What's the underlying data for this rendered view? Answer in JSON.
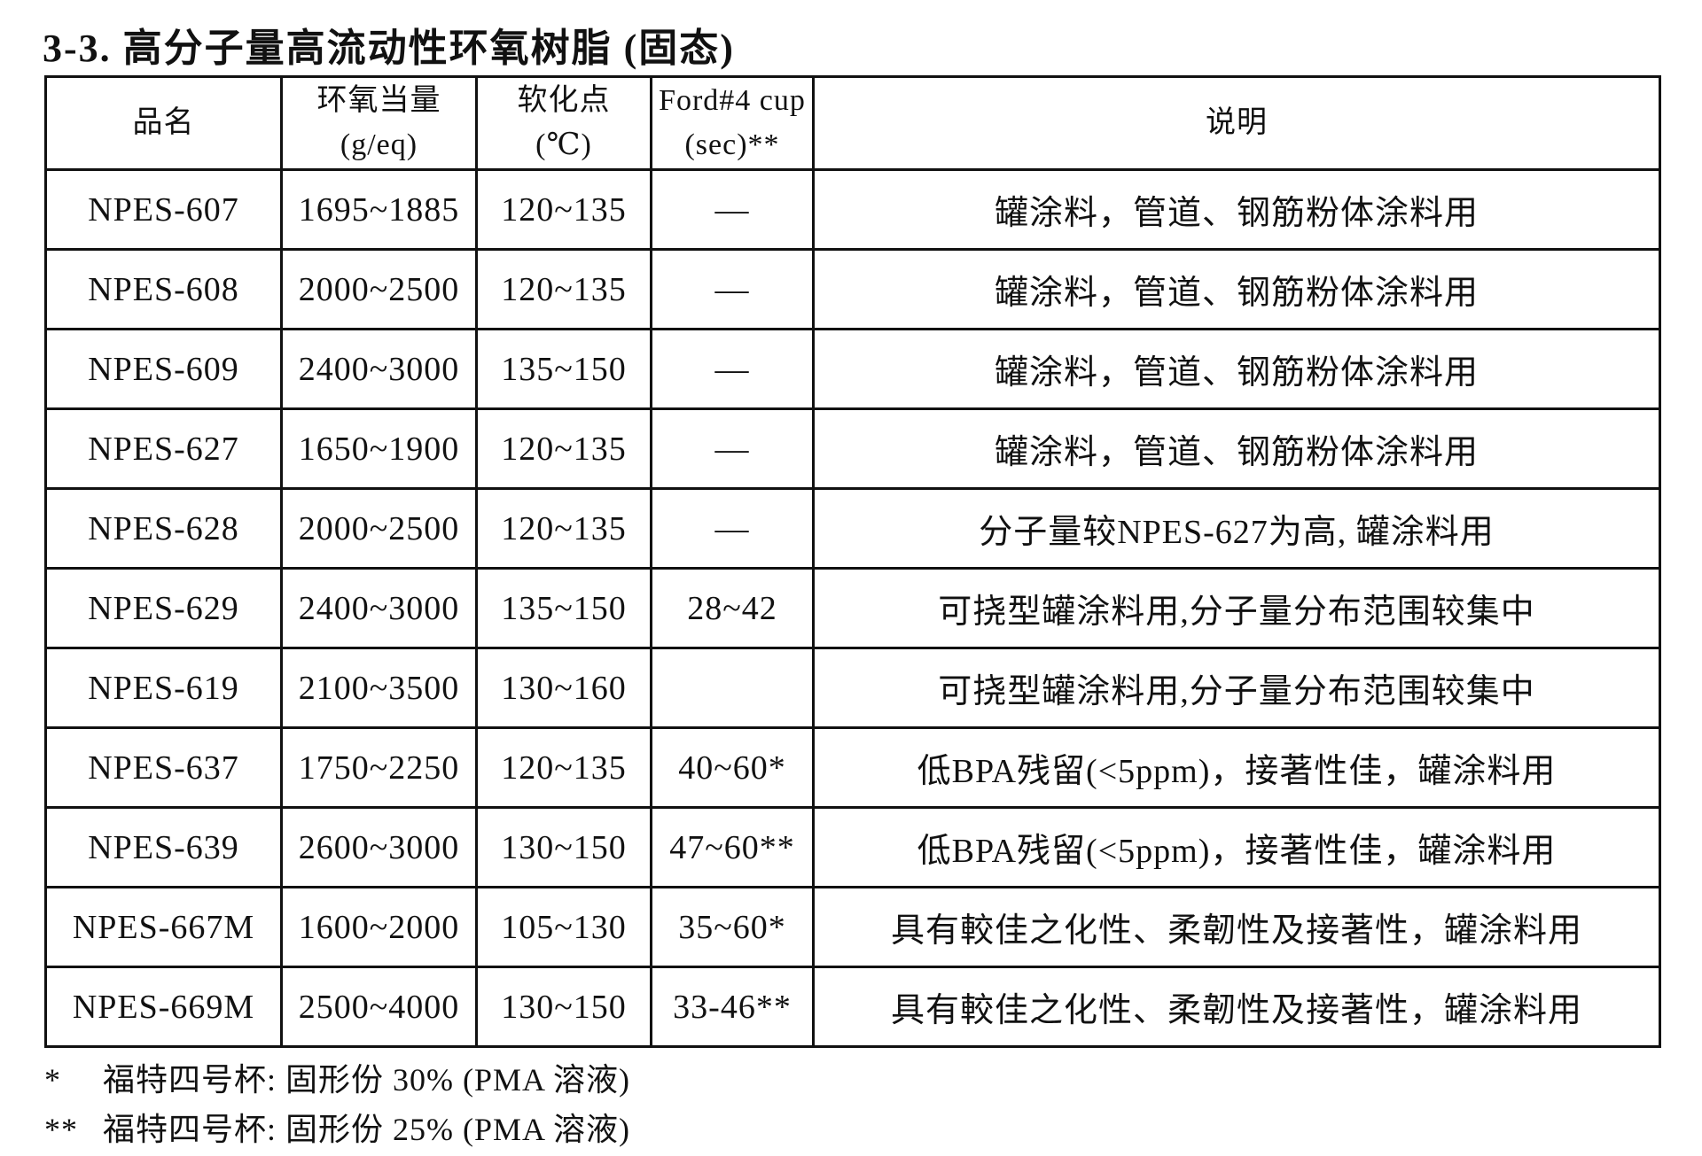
{
  "title": "3-3. 高分子量高流动性环氧树脂 (固态)",
  "table": {
    "headers": [
      [
        "品名"
      ],
      [
        "环氧当量",
        "(g/eq)"
      ],
      [
        "软化点",
        "(℃)"
      ],
      [
        "Ford#4 cup",
        "(sec)**"
      ],
      [
        "说明"
      ]
    ],
    "rows": [
      [
        "NPES-607",
        "1695~1885",
        "120~135",
        "—",
        "罐涂料，管道、钢筋粉体涂料用"
      ],
      [
        "NPES-608",
        "2000~2500",
        "120~135",
        "—",
        "罐涂料，管道、钢筋粉体涂料用"
      ],
      [
        "NPES-609",
        "2400~3000",
        "135~150",
        "—",
        "罐涂料，管道、钢筋粉体涂料用"
      ],
      [
        "NPES-627",
        "1650~1900",
        "120~135",
        "—",
        "罐涂料，管道、钢筋粉体涂料用"
      ],
      [
        "NPES-628",
        "2000~2500",
        "120~135",
        "—",
        "分子量较NPES-627为高, 罐涂料用"
      ],
      [
        "NPES-629",
        "2400~3000",
        "135~150",
        "28~42",
        "可挠型罐涂料用,分子量分布范围较集中"
      ],
      [
        "NPES-619",
        "2100~3500",
        "130~160",
        null,
        "可挠型罐涂料用,分子量分布范围较集中"
      ],
      [
        "NPES-637",
        "1750~2250",
        "120~135",
        "40~60*",
        "低BPA残留(<5ppm)，接著性佳，罐涂料用"
      ],
      [
        "NPES-639",
        "2600~3000",
        "130~150",
        "47~60**",
        "低BPA残留(<5ppm)，接著性佳，罐涂料用"
      ],
      [
        "NPES-667M",
        "1600~2000",
        "105~130",
        "35~60*",
        "具有較佳之化性、柔韌性及接著性，罐涂料用"
      ],
      [
        "NPES-669M",
        "2500~4000",
        "130~150",
        "33-46**",
        "具有較佳之化性、柔韌性及接著性，罐涂料用"
      ]
    ]
  },
  "footnotes": [
    {
      "marker": "*",
      "text": "福特四号杯: 固形份 30% (PMA 溶液)"
    },
    {
      "marker": "**",
      "text": "福特四号杯: 固形份 25% (PMA 溶液)"
    }
  ]
}
